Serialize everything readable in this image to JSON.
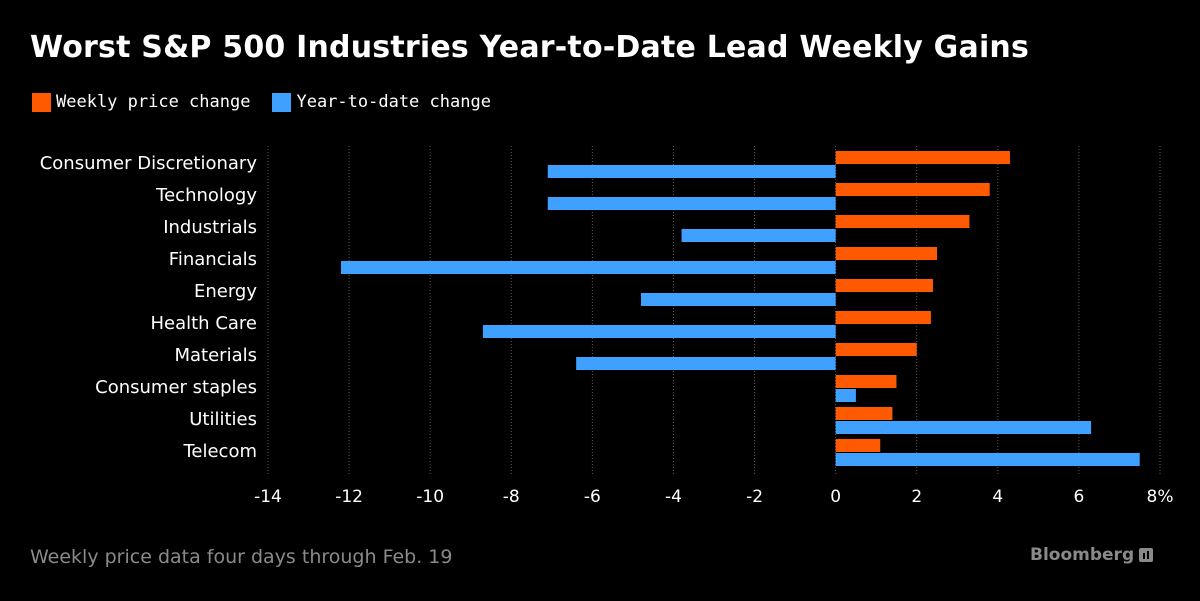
{
  "title": "Worst S&P 500 Industries Year-to-Date Lead Weekly Gains",
  "footnote": "Weekly price data four days through Feb. 19",
  "brand": "Bloomberg",
  "colors": {
    "background": "#000000",
    "weekly": "#ff5a00",
    "ytd": "#3fa0ff",
    "text": "#ffffff",
    "muted": "#8a8a8a"
  },
  "chart_data": {
    "type": "bar",
    "orientation": "horizontal",
    "categories": [
      "Consumer Discretionary",
      "Technology",
      "Industrials",
      "Financials",
      "Energy",
      "Health Care",
      "Materials",
      "Consumer staples",
      "Utilities",
      "Telecom"
    ],
    "series": [
      {
        "name": "Weekly price change",
        "values": [
          4.3,
          3.8,
          3.3,
          2.5,
          2.4,
          2.35,
          2.0,
          1.5,
          1.4,
          1.1
        ]
      },
      {
        "name": "Year-to-date change",
        "values": [
          -7.1,
          -7.1,
          -3.8,
          -12.2,
          -4.8,
          -8.7,
          -6.4,
          0.5,
          6.3,
          7.5
        ]
      }
    ],
    "xlim": [
      -14,
      8
    ],
    "xticks": [
      -14,
      -12,
      -10,
      -8,
      -6,
      -4,
      -2,
      0,
      2,
      4,
      6,
      8
    ],
    "xtick_labels": [
      "-14",
      "-12",
      "-10",
      "-8",
      "-6",
      "-4",
      "-2",
      "0",
      "2",
      "4",
      "6",
      "8%"
    ],
    "grid": true,
    "legend": "top-left"
  }
}
